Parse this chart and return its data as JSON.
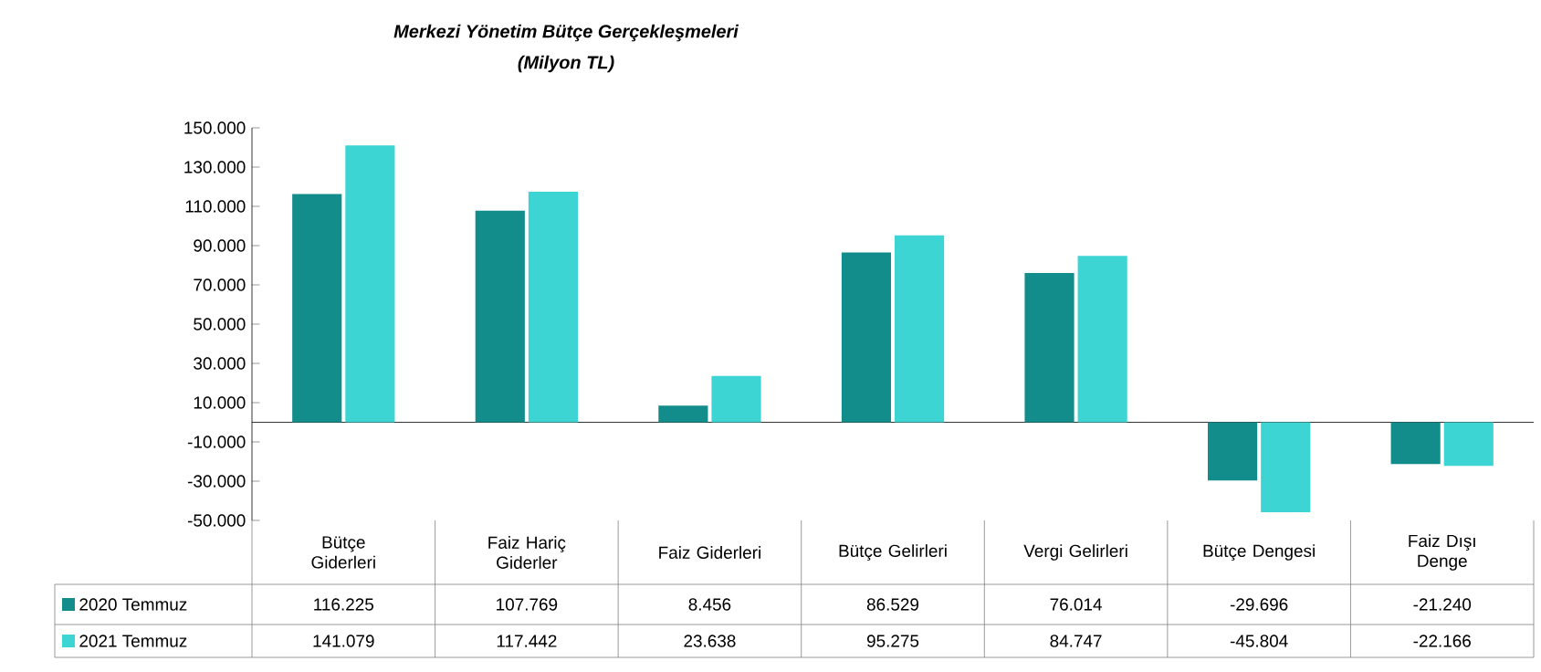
{
  "chart_data": {
    "type": "bar",
    "title": "Merkezi Yönetim Bütçe Gerçekleşmeleri",
    "subtitle": "(Milyon TL)",
    "categories": [
      "Bütçe Giderleri",
      "Faiz Hariç Giderler",
      "Faiz Giderleri",
      "Bütçe Gelirleri",
      "Vergi Gelirleri",
      "Bütçe Dengesi",
      "Faiz Dışı Denge"
    ],
    "series": [
      {
        "name": "2020 Temmuz",
        "color": "#138c8c",
        "values": [
          116225,
          107769,
          8456,
          86529,
          76014,
          -29696,
          -21240
        ],
        "value_labels": [
          "116.225",
          "107.769",
          "8.456",
          "86.529",
          "76.014",
          "-29.696",
          "-21.240"
        ]
      },
      {
        "name": "2021 Temmuz",
        "color": "#3dd4d4",
        "values": [
          141079,
          117442,
          23638,
          95275,
          84747,
          -45804,
          -22166
        ],
        "value_labels": [
          "141.079",
          "117.442",
          "23.638",
          "95.275",
          "84.747",
          "-45.804",
          "-22.166"
        ]
      }
    ],
    "ylim": [
      -50000,
      150000
    ],
    "yticks": [
      {
        "value": -50000,
        "label": "-50.000"
      },
      {
        "value": -30000,
        "label": "-30.000"
      },
      {
        "value": -10000,
        "label": "-10.000"
      },
      {
        "value": 10000,
        "label": "10.000"
      },
      {
        "value": 30000,
        "label": "30.000"
      },
      {
        "value": 50000,
        "label": "50.000"
      },
      {
        "value": 70000,
        "label": "70.000"
      },
      {
        "value": 90000,
        "label": "90.000"
      },
      {
        "value": 110000,
        "label": "110.000"
      },
      {
        "value": 130000,
        "label": "130.000"
      },
      {
        "value": 150000,
        "label": "150.000"
      }
    ],
    "grid": false,
    "legend": "bottom left"
  }
}
